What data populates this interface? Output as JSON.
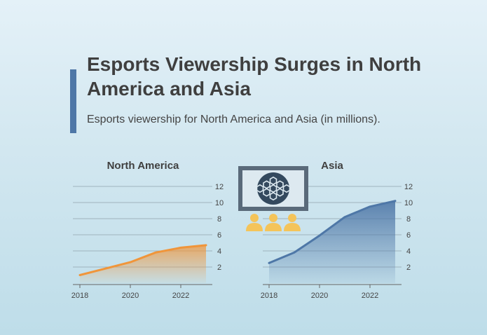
{
  "header": {
    "title": "Esports Viewership Surges in North America and Asia",
    "subtitle": "Esports viewership for North America and Asia (in millions)."
  },
  "icons": [
    "monitor-with-soccer-ball-icon",
    "audience-icon"
  ],
  "chart_data": [
    {
      "type": "area",
      "title": "North America",
      "x": [
        2018,
        2019,
        2020,
        2021,
        2022,
        2023
      ],
      "values": [
        1.0,
        1.8,
        2.6,
        3.8,
        4.4,
        4.7
      ],
      "xticks": [
        "2018",
        "2020",
        "2022"
      ],
      "yticks": [
        "2",
        "4",
        "6",
        "8",
        "10",
        "12"
      ],
      "ylim": [
        0,
        12
      ],
      "xlim": [
        2018,
        2023
      ],
      "y_axis_side": "right",
      "grid": true,
      "color": "#f0953a"
    },
    {
      "type": "area",
      "title": "Asia",
      "x": [
        2018,
        2019,
        2020,
        2021,
        2022,
        2023
      ],
      "values": [
        2.5,
        3.8,
        5.9,
        8.2,
        9.5,
        10.2
      ],
      "xticks": [
        "2018",
        "2020",
        "2022"
      ],
      "yticks": [
        "2",
        "4",
        "6",
        "8",
        "10",
        "12"
      ],
      "ylim": [
        0,
        12
      ],
      "xlim": [
        2018,
        2023
      ],
      "y_axis_side": "right",
      "grid": true,
      "color": "#4e77a7"
    }
  ]
}
